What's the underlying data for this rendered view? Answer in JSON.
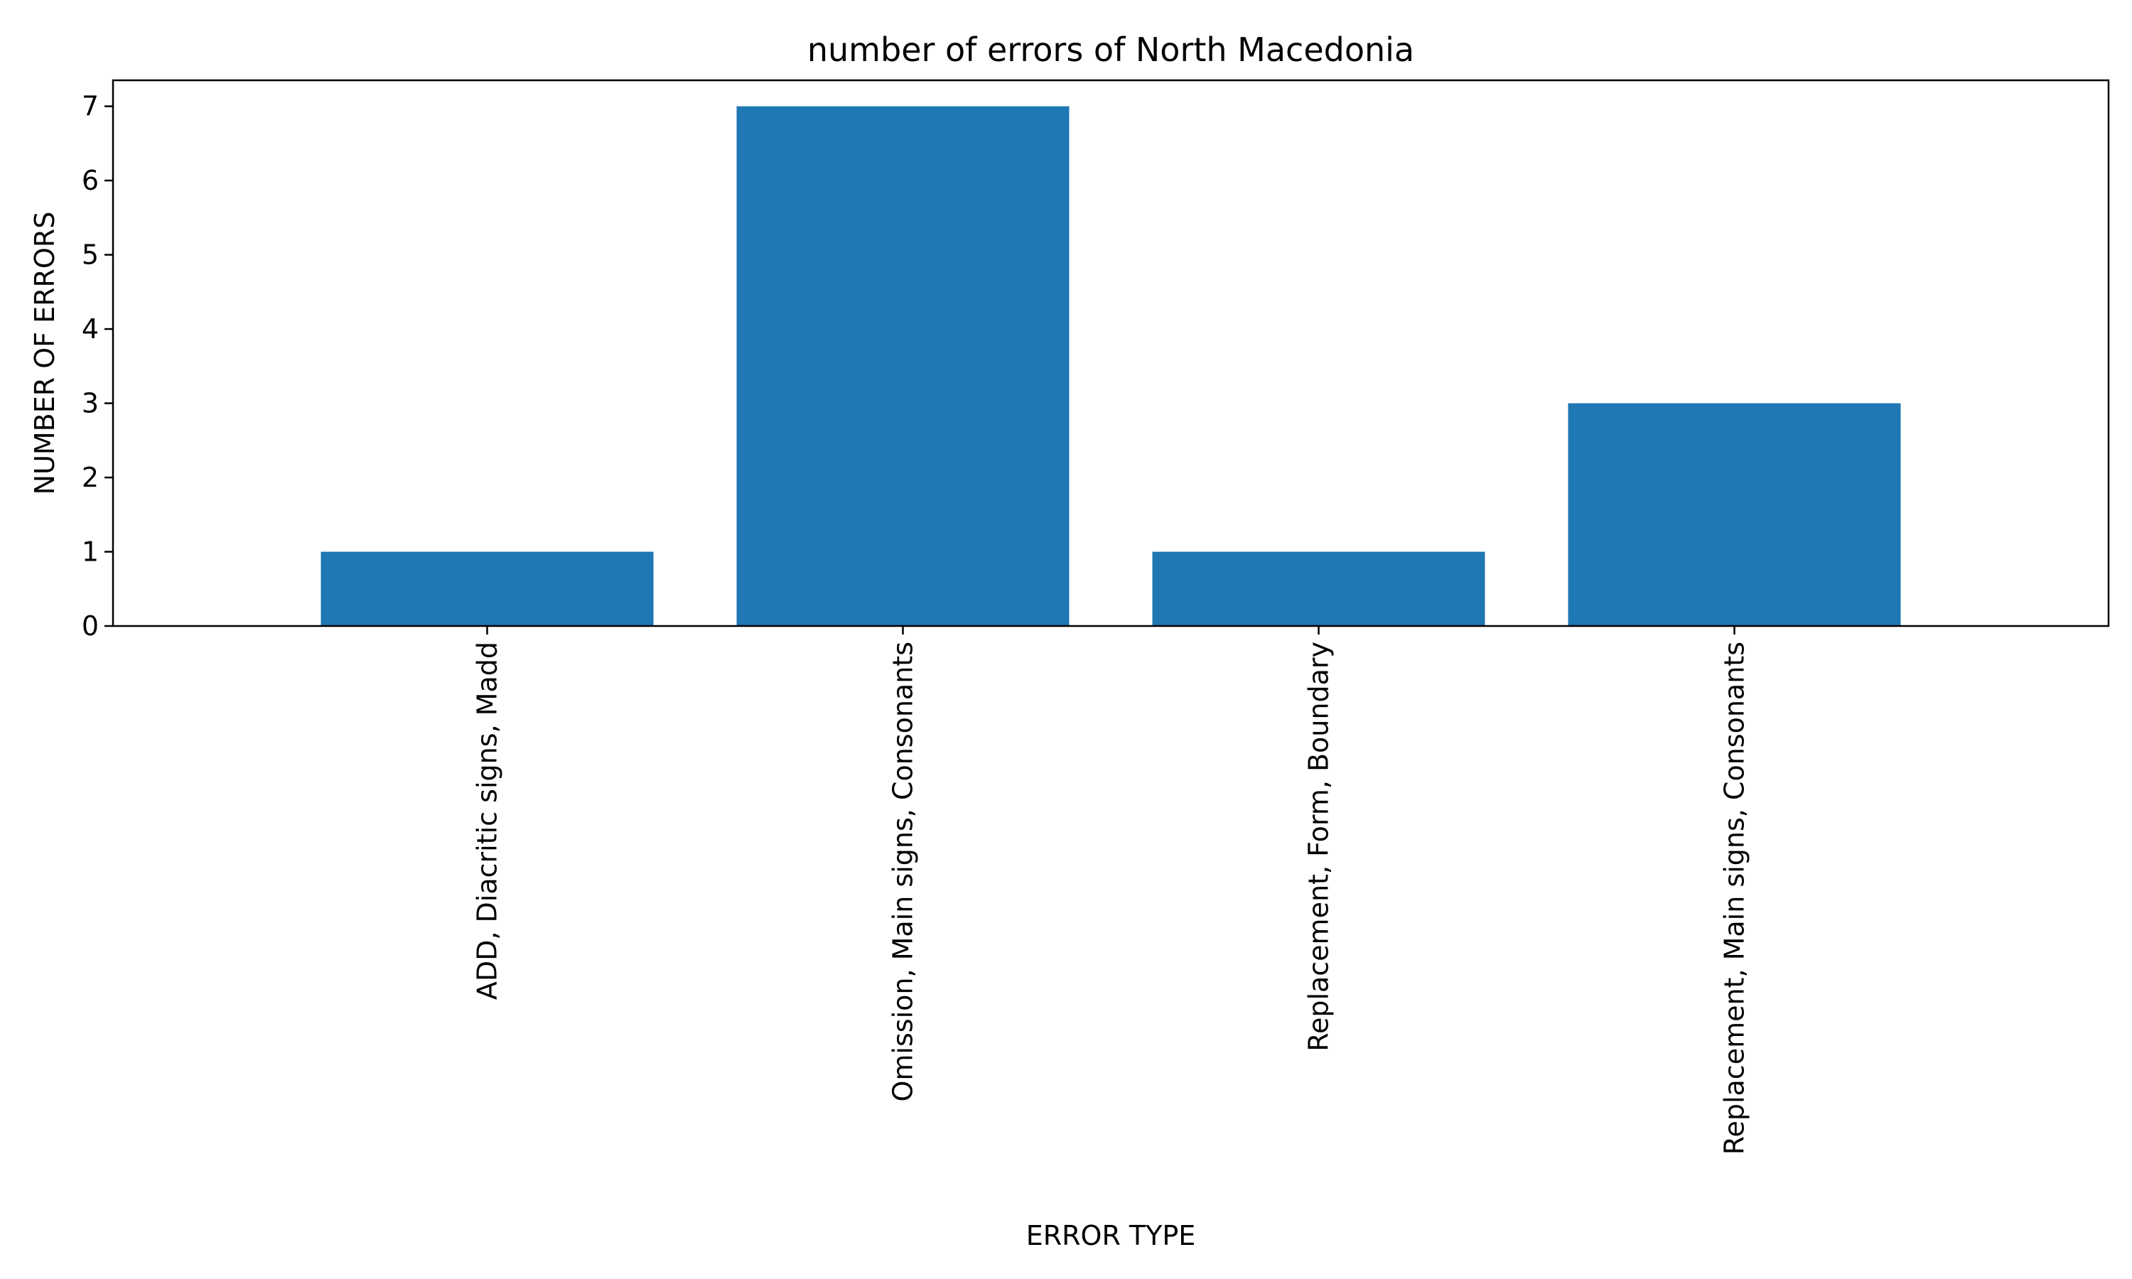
{
  "chart_data": {
    "type": "bar",
    "title": "number of errors of North Macedonia",
    "xlabel": "ERROR TYPE",
    "ylabel": "NUMBER OF ERRORS",
    "categories": [
      "ADD, Diacritic signs, Madd",
      "Omission, Main signs, Consonants",
      "Replacement, Form, Boundary",
      "Replacement, Main signs, Consonants"
    ],
    "values": [
      1,
      7,
      1,
      3
    ],
    "ylim": [
      0,
      7.35
    ],
    "yticks": [
      "0",
      "1",
      "2",
      "3",
      "4",
      "5",
      "6",
      "7"
    ],
    "grid": false,
    "bar_color": "#1f77b4"
  }
}
